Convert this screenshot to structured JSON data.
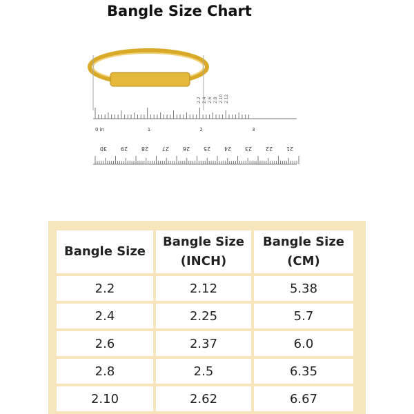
{
  "title": "Bangle Size Chart",
  "ruler": {
    "inch_labels": [
      "0 in",
      "1",
      "2",
      "3"
    ],
    "size_labels": [
      "2.2",
      "2.4",
      "2.6",
      "2.8",
      "2.10",
      "2.12"
    ],
    "cm_labels": [
      "30",
      "29",
      "28",
      "27",
      "26",
      "25",
      "24",
      "23",
      "22",
      "21"
    ]
  },
  "table": {
    "header": [
      "Bangle Size",
      "Bangle Size (INCH)",
      "Bangle Size (CM)"
    ],
    "rows": [
      [
        "2.2",
        "2.12",
        "5.38"
      ],
      [
        "2.4",
        "2.25",
        "5.7"
      ],
      [
        "2.6",
        "2.37",
        "6.0"
      ],
      [
        "2.8",
        "2.5",
        "6.35"
      ],
      [
        "2.10",
        "2.62",
        "6.67"
      ]
    ]
  }
}
